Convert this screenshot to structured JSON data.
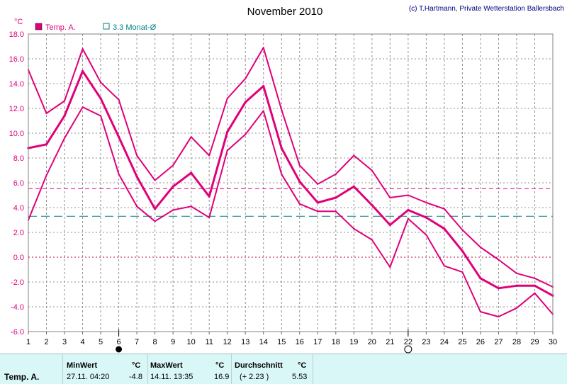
{
  "chart_data": {
    "type": "line",
    "title": "November 2010",
    "credit": "(c) T.Hartmann, Private Wetterstation Ballersbach",
    "ylabel": "°C",
    "ylim": [
      -6,
      18
    ],
    "xlim": [
      1,
      30
    ],
    "y_ticks": [
      "18.0",
      "16.0",
      "14.0",
      "12.0",
      "10.0",
      "8.0",
      "6.0",
      "4.0",
      "2.0",
      "0.0",
      "-2.0",
      "-4.0",
      "-6.0"
    ],
    "x_ticks": [
      "1",
      "2",
      "3",
      "4",
      "5",
      "6",
      "7",
      "8",
      "9",
      "10",
      "11",
      "12",
      "13",
      "14",
      "15",
      "16",
      "17",
      "18",
      "19",
      "20",
      "21",
      "22",
      "23",
      "24",
      "25",
      "26",
      "27",
      "28",
      "29",
      "30"
    ],
    "grid": true,
    "legend": [
      {
        "name": "Temp. A.",
        "color": "#e0007a",
        "style": "filled-square"
      },
      {
        "name": "3.3 Monat-Ø",
        "color": "#008080",
        "style": "outline-square"
      }
    ],
    "x": [
      1,
      2,
      3,
      4,
      5,
      6,
      7,
      8,
      9,
      10,
      11,
      12,
      13,
      14,
      15,
      16,
      17,
      18,
      19,
      20,
      21,
      22,
      23,
      24,
      25,
      26,
      27,
      28,
      29,
      30
    ],
    "series": [
      {
        "name": "Temp. A. max",
        "role": "max",
        "color": "#e0007a",
        "values": [
          15.1,
          11.6,
          12.6,
          16.8,
          14.1,
          12.7,
          8.2,
          6.2,
          7.4,
          9.7,
          8.2,
          12.8,
          14.4,
          16.9,
          11.9,
          7.4,
          5.9,
          6.7,
          8.2,
          7.0,
          4.8,
          5.0,
          4.4,
          3.9,
          2.2,
          0.8,
          -0.2,
          -1.3,
          -1.7,
          -2.4
        ]
      },
      {
        "name": "Temp. A.",
        "role": "mean",
        "color": "#e0007a",
        "values": [
          8.8,
          9.1,
          11.4,
          15.0,
          12.8,
          9.7,
          6.5,
          3.9,
          5.7,
          6.8,
          4.9,
          10.1,
          12.5,
          13.8,
          8.8,
          6.1,
          4.4,
          4.8,
          5.7,
          4.2,
          2.6,
          3.8,
          3.2,
          2.3,
          0.5,
          -1.7,
          -2.5,
          -2.3,
          -2.3,
          -3.1
        ]
      },
      {
        "name": "Temp. A. min",
        "role": "min",
        "color": "#e0007a",
        "values": [
          3.0,
          6.6,
          9.6,
          12.1,
          11.4,
          6.7,
          4.1,
          2.9,
          3.8,
          4.1,
          3.2,
          8.6,
          9.9,
          11.8,
          6.7,
          4.3,
          3.7,
          3.7,
          2.3,
          1.4,
          -0.8,
          3.1,
          1.8,
          -0.7,
          -1.2,
          -4.4,
          -4.8,
          -4.1,
          -2.9,
          -4.6
        ]
      }
    ],
    "reference_lines": [
      {
        "name": "Temp. A. Monatsmittel",
        "value": 5.53,
        "color": "#e0007a",
        "style": "dashed"
      },
      {
        "name": "3.3 Monat-Ø",
        "value": 3.3,
        "color": "#008080",
        "style": "dashed"
      }
    ],
    "moon_markers": [
      {
        "day": 6,
        "phase": "new"
      },
      {
        "day": 22,
        "phase": "full"
      }
    ]
  },
  "stats": {
    "row_label": "Temp. A.",
    "min_header": "MinWert",
    "max_header": "MaxWert",
    "avg_header": "Durchschnitt",
    "unit": "°C",
    "min_datetime": "27.11.  04:20",
    "min_value": "-4.8",
    "max_datetime": "14.11.  13:35",
    "max_value": "16.9",
    "avg_delta": "(+ 2.23 )",
    "avg_value": "5.53"
  }
}
